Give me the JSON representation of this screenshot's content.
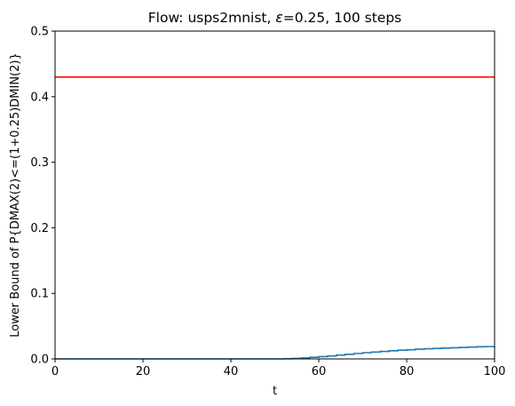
{
  "chart_data": {
    "type": "line",
    "title": "Flow: usps2mnist, ε=0.25, 100 steps",
    "title_prefix": "Flow: usps2mnist, ",
    "title_epsilon": "ε",
    "title_suffix": "=0.25, 100 steps",
    "xlabel": "t",
    "ylabel": "Lower Bound of P{DMAX(2)<=(1+0.25)DMIN(2)}",
    "xlim": [
      0,
      100
    ],
    "ylim": [
      0,
      0.5
    ],
    "xticks": [
      0,
      20,
      40,
      60,
      80,
      100
    ],
    "yticks": [
      0.0,
      0.1,
      0.2,
      0.3,
      0.4,
      0.5
    ],
    "xtick_labels": [
      "0",
      "20",
      "40",
      "60",
      "80",
      "100"
    ],
    "ytick_labels": [
      "0.0",
      "0.1",
      "0.2",
      "0.3",
      "0.4",
      "0.5"
    ],
    "grid": false,
    "legend": false,
    "series": [
      {
        "style": "step",
        "color": "#1f77b4",
        "x": [
          0,
          10,
          20,
          30,
          40,
          50,
          52,
          54,
          56,
          58,
          60,
          62,
          64,
          66,
          68,
          70,
          72,
          74,
          76,
          78,
          80,
          82,
          84,
          86,
          88,
          90,
          92,
          94,
          96,
          98,
          100
        ],
        "y": [
          0.0,
          0.0,
          0.0,
          0.0,
          0.0,
          0.0,
          0.0003,
          0.0008,
          0.0015,
          0.0025,
          0.0035,
          0.0045,
          0.0058,
          0.007,
          0.0083,
          0.0095,
          0.0105,
          0.0115,
          0.0125,
          0.0133,
          0.014,
          0.0148,
          0.0155,
          0.016,
          0.0165,
          0.017,
          0.0175,
          0.018,
          0.0185,
          0.0188,
          0.019
        ]
      },
      {
        "style": "hline",
        "color": "#ff0000",
        "x": [
          0,
          100
        ],
        "y": [
          0.43,
          0.43
        ]
      }
    ]
  }
}
